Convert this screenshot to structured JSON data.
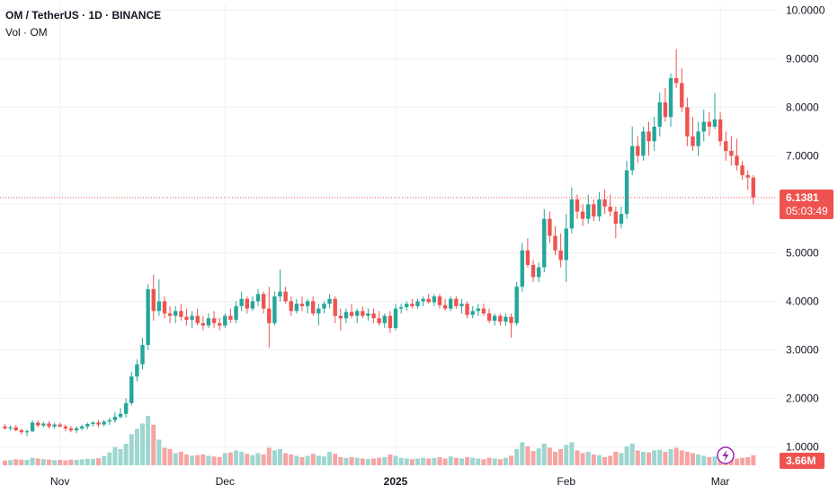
{
  "header": {
    "symbol_line": "OM / TetherUS · 1D · BINANCE",
    "volume_label": "Vol · OM"
  },
  "price_badge": {
    "price": "6.1381",
    "countdown": "05:03:49"
  },
  "volume_badge": {
    "value": "3.66M"
  },
  "colors": {
    "up": "#26a69a",
    "down": "#ef5350",
    "vol_up": "#9dd6cf",
    "vol_down": "#f5a5a3",
    "grid": "#eef0f3",
    "price_line": "#ef5350",
    "bolt": "#9c27b0",
    "axis_text": "#131722"
  },
  "icons": {
    "alert": "lightning-bolt-icon"
  },
  "chart_data": {
    "type": "candlestick",
    "title": "OM / TetherUS · 1D · BINANCE",
    "ylim": [
      0.62,
      10.1
    ],
    "y_ticks": [
      "1.0000",
      "2.0000",
      "3.0000",
      "4.0000",
      "5.0000",
      "6.0000",
      "7.0000",
      "8.0000",
      "9.0000",
      "10.0000"
    ],
    "x_ticks": [
      {
        "label": "Nov",
        "index": 10,
        "bold": false
      },
      {
        "label": "Dec",
        "index": 40,
        "bold": false
      },
      {
        "label": "2025",
        "index": 71,
        "bold": true
      },
      {
        "label": "Feb",
        "index": 102,
        "bold": false
      },
      {
        "label": "Mar",
        "index": 130,
        "bold": false
      }
    ],
    "last_price": 6.1381,
    "volume_max_ref": 3.66,
    "candles": [
      [
        1.42,
        1.47,
        1.36,
        1.38,
        0.35
      ],
      [
        1.38,
        1.44,
        1.33,
        1.4,
        0.38
      ],
      [
        1.4,
        1.45,
        1.32,
        1.34,
        0.45
      ],
      [
        1.34,
        1.38,
        1.26,
        1.3,
        0.42
      ],
      [
        1.3,
        1.36,
        1.22,
        1.32,
        0.4
      ],
      [
        1.32,
        1.55,
        1.3,
        1.5,
        0.55
      ],
      [
        1.5,
        1.54,
        1.4,
        1.44,
        0.5
      ],
      [
        1.44,
        1.52,
        1.4,
        1.48,
        0.45
      ],
      [
        1.48,
        1.53,
        1.38,
        1.42,
        0.42
      ],
      [
        1.42,
        1.5,
        1.38,
        1.46,
        0.38
      ],
      [
        1.46,
        1.5,
        1.4,
        1.42,
        0.4
      ],
      [
        1.42,
        1.46,
        1.32,
        1.38,
        0.36
      ],
      [
        1.38,
        1.43,
        1.3,
        1.34,
        0.42
      ],
      [
        1.34,
        1.42,
        1.28,
        1.38,
        0.4
      ],
      [
        1.38,
        1.46,
        1.34,
        1.42,
        0.44
      ],
      [
        1.42,
        1.5,
        1.36,
        1.47,
        0.48
      ],
      [
        1.47,
        1.53,
        1.42,
        1.5,
        0.46
      ],
      [
        1.5,
        1.55,
        1.4,
        1.46,
        0.52
      ],
      [
        1.46,
        1.55,
        1.42,
        1.52,
        0.68
      ],
      [
        1.52,
        1.6,
        1.45,
        1.55,
        0.95
      ],
      [
        1.55,
        1.72,
        1.5,
        1.62,
        1.35
      ],
      [
        1.62,
        1.8,
        1.58,
        1.68,
        1.2
      ],
      [
        1.68,
        2.0,
        1.6,
        1.9,
        1.6
      ],
      [
        1.9,
        2.55,
        1.85,
        2.45,
        2.3
      ],
      [
        2.45,
        2.8,
        2.35,
        2.7,
        2.7
      ],
      [
        2.7,
        3.25,
        2.6,
        3.1,
        3.1
      ],
      [
        3.1,
        4.35,
        3.0,
        4.25,
        3.66
      ],
      [
        4.25,
        4.55,
        3.6,
        3.8,
        3.0
      ],
      [
        3.8,
        4.45,
        3.7,
        4.0,
        1.9
      ],
      [
        4.0,
        4.1,
        3.65,
        3.75,
        1.3
      ],
      [
        3.75,
        3.9,
        3.55,
        3.7,
        1.2
      ],
      [
        3.7,
        3.9,
        3.55,
        3.8,
        0.9
      ],
      [
        3.8,
        3.95,
        3.6,
        3.68,
        1.0
      ],
      [
        3.68,
        3.85,
        3.5,
        3.62,
        0.8
      ],
      [
        3.62,
        3.8,
        3.45,
        3.7,
        0.7
      ],
      [
        3.7,
        3.85,
        3.5,
        3.55,
        0.75
      ],
      [
        3.55,
        3.7,
        3.4,
        3.5,
        0.8
      ],
      [
        3.5,
        3.75,
        3.45,
        3.65,
        0.7
      ],
      [
        3.65,
        3.8,
        3.45,
        3.55,
        0.65
      ],
      [
        3.55,
        3.65,
        3.4,
        3.5,
        0.6
      ],
      [
        3.5,
        3.75,
        3.45,
        3.7,
        0.9
      ],
      [
        3.7,
        3.85,
        3.55,
        3.62,
        0.95
      ],
      [
        3.62,
        4.0,
        3.55,
        3.9,
        1.1
      ],
      [
        3.9,
        4.2,
        3.8,
        4.05,
        1.0
      ],
      [
        4.05,
        4.1,
        3.75,
        3.85,
        0.85
      ],
      [
        3.85,
        4.1,
        3.8,
        4.0,
        0.75
      ],
      [
        4.0,
        4.25,
        3.9,
        4.15,
        0.9
      ],
      [
        4.15,
        4.2,
        3.75,
        3.85,
        0.8
      ],
      [
        3.85,
        4.3,
        3.05,
        3.55,
        1.3
      ],
      [
        3.55,
        4.2,
        3.5,
        4.1,
        1.1
      ],
      [
        4.1,
        4.65,
        4.0,
        4.2,
        1.2
      ],
      [
        4.2,
        4.3,
        3.95,
        4.0,
        0.9
      ],
      [
        4.0,
        4.1,
        3.7,
        3.8,
        0.8
      ],
      [
        3.8,
        4.05,
        3.75,
        3.95,
        0.7
      ],
      [
        3.95,
        4.1,
        3.8,
        3.9,
        0.6
      ],
      [
        3.9,
        4.05,
        3.75,
        4.0,
        0.7
      ],
      [
        4.0,
        4.1,
        3.7,
        3.75,
        0.85
      ],
      [
        3.75,
        3.95,
        3.5,
        3.85,
        0.7
      ],
      [
        3.85,
        4.0,
        3.75,
        3.95,
        0.65
      ],
      [
        3.95,
        4.15,
        3.85,
        4.05,
        1.0
      ],
      [
        4.05,
        4.1,
        3.55,
        3.7,
        0.85
      ],
      [
        3.7,
        3.85,
        3.4,
        3.65,
        0.6
      ],
      [
        3.65,
        3.85,
        3.55,
        3.78,
        0.55
      ],
      [
        3.78,
        3.95,
        3.65,
        3.7,
        0.6
      ],
      [
        3.7,
        3.85,
        3.55,
        3.8,
        0.55
      ],
      [
        3.8,
        3.9,
        3.65,
        3.7,
        0.5
      ],
      [
        3.7,
        3.85,
        3.6,
        3.75,
        0.45
      ],
      [
        3.75,
        3.85,
        3.55,
        3.65,
        0.5
      ],
      [
        3.65,
        3.8,
        3.5,
        3.55,
        0.55
      ],
      [
        3.55,
        3.75,
        3.45,
        3.7,
        0.6
      ],
      [
        3.7,
        3.8,
        3.35,
        3.45,
        0.8
      ],
      [
        3.45,
        3.95,
        3.4,
        3.85,
        0.7
      ],
      [
        3.85,
        3.95,
        3.75,
        3.88,
        0.55
      ],
      [
        3.88,
        4.0,
        3.8,
        3.95,
        0.5
      ],
      [
        3.95,
        4.05,
        3.85,
        3.9,
        0.45
      ],
      [
        3.9,
        4.05,
        3.85,
        4.0,
        0.5
      ],
      [
        4.0,
        4.1,
        3.9,
        4.05,
        0.55
      ],
      [
        4.05,
        4.15,
        3.95,
        3.98,
        0.5
      ],
      [
        3.98,
        4.15,
        3.9,
        4.1,
        0.55
      ],
      [
        4.1,
        4.15,
        3.85,
        3.92,
        0.6
      ],
      [
        3.92,
        4.05,
        3.8,
        3.85,
        0.5
      ],
      [
        3.85,
        4.1,
        3.8,
        4.05,
        0.65
      ],
      [
        4.05,
        4.1,
        3.85,
        3.9,
        0.55
      ],
      [
        3.9,
        4.05,
        3.75,
        3.95,
        0.5
      ],
      [
        3.95,
        4.0,
        3.65,
        3.72,
        0.6
      ],
      [
        3.72,
        3.9,
        3.65,
        3.8,
        0.55
      ],
      [
        3.8,
        3.95,
        3.7,
        3.85,
        0.5
      ],
      [
        3.85,
        3.95,
        3.7,
        3.75,
        0.45
      ],
      [
        3.75,
        3.85,
        3.55,
        3.6,
        0.55
      ],
      [
        3.6,
        3.75,
        3.5,
        3.7,
        0.5
      ],
      [
        3.7,
        3.75,
        3.5,
        3.58,
        0.45
      ],
      [
        3.58,
        3.75,
        3.5,
        3.68,
        0.55
      ],
      [
        3.68,
        3.75,
        3.25,
        3.55,
        0.7
      ],
      [
        3.55,
        4.4,
        3.5,
        4.3,
        1.2
      ],
      [
        4.3,
        5.2,
        4.2,
        5.05,
        1.7
      ],
      [
        5.05,
        5.3,
        4.7,
        4.75,
        1.4
      ],
      [
        4.75,
        4.85,
        4.4,
        4.5,
        1.05
      ],
      [
        4.5,
        4.8,
        4.4,
        4.7,
        1.25
      ],
      [
        4.7,
        5.9,
        4.6,
        5.7,
        1.6
      ],
      [
        5.7,
        5.85,
        5.2,
        5.35,
        1.3
      ],
      [
        5.35,
        5.55,
        4.95,
        5.05,
        1.0
      ],
      [
        5.05,
        5.4,
        4.7,
        4.85,
        1.2
      ],
      [
        4.85,
        5.8,
        4.4,
        5.5,
        1.5
      ],
      [
        5.5,
        6.35,
        5.4,
        6.1,
        1.7
      ],
      [
        6.1,
        6.2,
        5.7,
        5.85,
        1.1
      ],
      [
        5.85,
        6.0,
        5.55,
        5.7,
        0.9
      ],
      [
        5.7,
        6.2,
        5.6,
        6.0,
        1.0
      ],
      [
        6.0,
        6.1,
        5.65,
        5.75,
        0.8
      ],
      [
        5.75,
        6.25,
        5.65,
        6.1,
        0.75
      ],
      [
        6.1,
        6.3,
        5.8,
        5.95,
        0.6
      ],
      [
        5.95,
        6.2,
        5.75,
        5.85,
        0.7
      ],
      [
        5.85,
        5.95,
        5.3,
        5.6,
        1.0
      ],
      [
        5.6,
        5.95,
        5.5,
        5.8,
        0.9
      ],
      [
        5.8,
        6.9,
        5.7,
        6.7,
        1.4
      ],
      [
        6.7,
        7.6,
        6.6,
        7.2,
        1.6
      ],
      [
        7.2,
        7.4,
        6.85,
        7.0,
        1.1
      ],
      [
        7.0,
        7.6,
        6.9,
        7.5,
        1.0
      ],
      [
        7.5,
        7.7,
        7.0,
        7.3,
        0.95
      ],
      [
        7.3,
        7.8,
        7.1,
        7.6,
        1.1
      ],
      [
        7.6,
        8.3,
        7.4,
        8.1,
        1.15
      ],
      [
        8.1,
        8.4,
        7.7,
        7.8,
        1.0
      ],
      [
        7.8,
        8.7,
        7.6,
        8.6,
        1.2
      ],
      [
        8.6,
        9.2,
        8.4,
        8.5,
        1.3
      ],
      [
        8.5,
        8.8,
        7.9,
        8.0,
        1.1
      ],
      [
        8.0,
        8.2,
        7.2,
        7.4,
        1.0
      ],
      [
        7.4,
        7.8,
        7.1,
        7.2,
        0.9
      ],
      [
        7.2,
        7.7,
        7.0,
        7.5,
        0.8
      ],
      [
        7.5,
        7.95,
        7.3,
        7.7,
        0.7
      ],
      [
        7.7,
        7.9,
        7.4,
        7.6,
        0.6
      ],
      [
        7.6,
        8.3,
        7.55,
        7.75,
        0.65
      ],
      [
        7.75,
        7.9,
        7.2,
        7.3,
        0.55
      ],
      [
        7.3,
        7.5,
        6.9,
        7.1,
        0.6
      ],
      [
        7.1,
        7.4,
        6.8,
        7.0,
        0.5
      ],
      [
        7.0,
        7.35,
        6.7,
        6.8,
        0.5
      ],
      [
        6.8,
        6.9,
        6.5,
        6.6,
        0.55
      ],
      [
        6.6,
        6.7,
        6.3,
        6.55,
        0.6
      ],
      [
        6.55,
        6.6,
        6.0,
        6.14,
        0.75
      ]
    ]
  }
}
